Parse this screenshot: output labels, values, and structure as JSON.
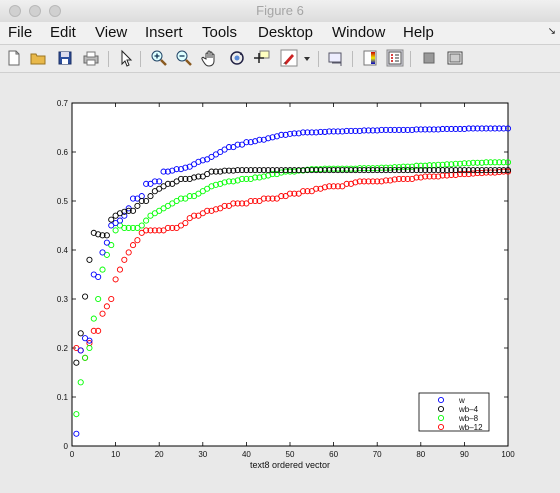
{
  "window": {
    "title": "Figure 6"
  },
  "menu": [
    "File",
    "Edit",
    "View",
    "Insert",
    "Tools",
    "Desktop",
    "Window",
    "Help"
  ],
  "toolbar_icons": [
    "new-figure-icon",
    "open-file-icon",
    "save-icon",
    "print-icon",
    "pointer-icon",
    "zoom-in-icon",
    "zoom-out-icon",
    "pan-hand-icon",
    "rotate-3d-icon",
    "data-cursor-icon",
    "brush-icon",
    "brush-dropdown-icon",
    "link-plot-icon",
    "colorbar-icon",
    "legend-icon",
    "hide-plot-tools-icon",
    "show-plot-tools-icon"
  ],
  "colors": {
    "w": "#0000ff",
    "wb4": "#000000",
    "wb8": "#00ff00",
    "wb12": "#ff0000"
  },
  "chart_data": {
    "type": "scatter",
    "title": "",
    "xlabel": "text8 ordered vector",
    "ylabel": "",
    "xlim": [
      0,
      100
    ],
    "ylim": [
      0,
      0.7
    ],
    "xticks": [
      "0",
      "10",
      "20",
      "30",
      "40",
      "50",
      "60",
      "70",
      "80",
      "90",
      "100"
    ],
    "yticks": [
      "0",
      "0.1",
      "0.2",
      "0.3",
      "0.4",
      "0.5",
      "0.6",
      "0.7"
    ],
    "grid": false,
    "legend_position": "bottom-right",
    "marker": "circle-open",
    "x": [
      1,
      2,
      3,
      4,
      5,
      6,
      7,
      8,
      9,
      10,
      11,
      12,
      13,
      14,
      15,
      16,
      17,
      18,
      19,
      20,
      21,
      22,
      23,
      24,
      25,
      26,
      27,
      28,
      29,
      30,
      31,
      32,
      33,
      34,
      35,
      36,
      37,
      38,
      39,
      40,
      41,
      42,
      43,
      44,
      45,
      46,
      47,
      48,
      49,
      50,
      51,
      52,
      53,
      54,
      55,
      56,
      57,
      58,
      59,
      60,
      61,
      62,
      63,
      64,
      65,
      66,
      67,
      68,
      69,
      70,
      71,
      72,
      73,
      74,
      75,
      76,
      77,
      78,
      79,
      80,
      81,
      82,
      83,
      84,
      85,
      86,
      87,
      88,
      89,
      90,
      91,
      92,
      93,
      94,
      95,
      96,
      97,
      98,
      99,
      100
    ],
    "series": [
      {
        "name": "w",
        "color": "#0000ff",
        "values": [
          0.025,
          0.195,
          0.22,
          0.215,
          0.35,
          0.345,
          0.395,
          0.415,
          0.45,
          0.455,
          0.46,
          0.47,
          0.485,
          0.505,
          0.505,
          0.51,
          0.535,
          0.535,
          0.54,
          0.54,
          0.56,
          0.56,
          0.562,
          0.565,
          0.565,
          0.568,
          0.57,
          0.575,
          0.58,
          0.583,
          0.585,
          0.59,
          0.595,
          0.6,
          0.605,
          0.61,
          0.61,
          0.615,
          0.615,
          0.62,
          0.62,
          0.622,
          0.625,
          0.625,
          0.628,
          0.63,
          0.632,
          0.635,
          0.635,
          0.637,
          0.638,
          0.638,
          0.64,
          0.64,
          0.64,
          0.64,
          0.641,
          0.641,
          0.642,
          0.642,
          0.642,
          0.642,
          0.643,
          0.643,
          0.643,
          0.643,
          0.644,
          0.644,
          0.644,
          0.644,
          0.645,
          0.645,
          0.645,
          0.645,
          0.645,
          0.645,
          0.645,
          0.645,
          0.646,
          0.646,
          0.646,
          0.646,
          0.646,
          0.646,
          0.647,
          0.647,
          0.647,
          0.647,
          0.647,
          0.647,
          0.648,
          0.648,
          0.648,
          0.648,
          0.648,
          0.648,
          0.648,
          0.648,
          0.648,
          0.648
        ]
      },
      {
        "name": "wb–4",
        "color": "#000000",
        "values": [
          0.17,
          0.23,
          0.305,
          0.38,
          0.435,
          0.432,
          0.43,
          0.43,
          0.462,
          0.47,
          0.475,
          0.478,
          0.48,
          0.48,
          0.49,
          0.5,
          0.5,
          0.51,
          0.52,
          0.525,
          0.53,
          0.535,
          0.535,
          0.54,
          0.545,
          0.545,
          0.545,
          0.548,
          0.55,
          0.55,
          0.555,
          0.56,
          0.56,
          0.56,
          0.562,
          0.562,
          0.562,
          0.563,
          0.563,
          0.563,
          0.563,
          0.563,
          0.563,
          0.563,
          0.563,
          0.563,
          0.563,
          0.563,
          0.563,
          0.563,
          0.563,
          0.563,
          0.563,
          0.563,
          0.563,
          0.563,
          0.563,
          0.563,
          0.563,
          0.563,
          0.563,
          0.563,
          0.563,
          0.563,
          0.563,
          0.563,
          0.563,
          0.563,
          0.563,
          0.563,
          0.563,
          0.563,
          0.563,
          0.563,
          0.563,
          0.563,
          0.563,
          0.563,
          0.563,
          0.563,
          0.563,
          0.563,
          0.563,
          0.563,
          0.563,
          0.563,
          0.563,
          0.563,
          0.563,
          0.563,
          0.563,
          0.563,
          0.563,
          0.563,
          0.563,
          0.563,
          0.563,
          0.563,
          0.563,
          0.563
        ]
      },
      {
        "name": "wb–8",
        "color": "#00ff00",
        "values": [
          0.065,
          0.13,
          0.18,
          0.2,
          0.26,
          0.3,
          0.36,
          0.39,
          0.41,
          0.44,
          0.45,
          0.445,
          0.445,
          0.445,
          0.445,
          0.45,
          0.46,
          0.47,
          0.475,
          0.48,
          0.485,
          0.49,
          0.495,
          0.5,
          0.505,
          0.505,
          0.51,
          0.51,
          0.515,
          0.52,
          0.525,
          0.53,
          0.533,
          0.535,
          0.538,
          0.54,
          0.54,
          0.542,
          0.545,
          0.545,
          0.545,
          0.548,
          0.548,
          0.55,
          0.552,
          0.555,
          0.555,
          0.558,
          0.56,
          0.56,
          0.56,
          0.562,
          0.562,
          0.564,
          0.565,
          0.565,
          0.565,
          0.566,
          0.566,
          0.566,
          0.566,
          0.566,
          0.566,
          0.566,
          0.566,
          0.567,
          0.567,
          0.567,
          0.567,
          0.567,
          0.568,
          0.568,
          0.568,
          0.569,
          0.569,
          0.57,
          0.57,
          0.57,
          0.572,
          0.572,
          0.572,
          0.573,
          0.573,
          0.574,
          0.574,
          0.575,
          0.575,
          0.576,
          0.576,
          0.577,
          0.577,
          0.578,
          0.578,
          0.578,
          0.579,
          0.579,
          0.579,
          0.579,
          0.579,
          0.579
        ]
      },
      {
        "name": "wb–12",
        "color": "#ff0000",
        "values": [
          0.2,
          0.195,
          0.18,
          0.21,
          0.235,
          0.235,
          0.27,
          0.285,
          0.3,
          0.34,
          0.36,
          0.38,
          0.395,
          0.41,
          0.42,
          0.435,
          0.44,
          0.44,
          0.44,
          0.44,
          0.44,
          0.445,
          0.445,
          0.445,
          0.45,
          0.455,
          0.465,
          0.47,
          0.47,
          0.475,
          0.48,
          0.48,
          0.483,
          0.485,
          0.49,
          0.49,
          0.495,
          0.495,
          0.495,
          0.495,
          0.5,
          0.5,
          0.5,
          0.505,
          0.505,
          0.505,
          0.505,
          0.51,
          0.51,
          0.515,
          0.515,
          0.515,
          0.52,
          0.52,
          0.52,
          0.525,
          0.525,
          0.528,
          0.53,
          0.53,
          0.53,
          0.53,
          0.535,
          0.535,
          0.538,
          0.54,
          0.54,
          0.54,
          0.54,
          0.54,
          0.54,
          0.542,
          0.542,
          0.544,
          0.545,
          0.545,
          0.545,
          0.545,
          0.548,
          0.548,
          0.55,
          0.55,
          0.55,
          0.55,
          0.552,
          0.552,
          0.553,
          0.553,
          0.555,
          0.555,
          0.555,
          0.556,
          0.557,
          0.557,
          0.558,
          0.558,
          0.558,
          0.559,
          0.56,
          0.56
        ]
      }
    ]
  }
}
